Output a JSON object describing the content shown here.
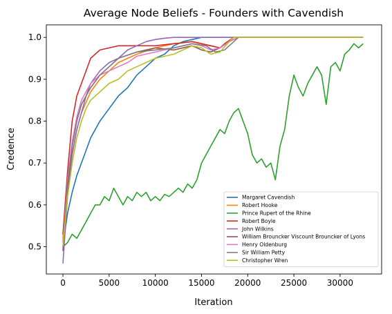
{
  "chart_data": {
    "type": "line",
    "title": "Average Node Beliefs - Founders with Cavendish",
    "xlabel": "Iteration",
    "ylabel": "Credence",
    "xlim": [
      -1800,
      34500
    ],
    "ylim": [
      0.435,
      1.03
    ],
    "xticks": [
      0,
      5000,
      10000,
      15000,
      20000,
      25000,
      30000
    ],
    "yticks": [
      0.5,
      0.6,
      0.7,
      0.8,
      0.9,
      1.0
    ],
    "xtick_labels": [
      "0",
      "5000",
      "10000",
      "15000",
      "20000",
      "25000",
      "30000"
    ],
    "ytick_labels": [
      "0.5",
      "0.6",
      "0.7",
      "0.8",
      "0.9",
      "1.0"
    ],
    "grid": false,
    "legend_position": "lower-right",
    "series": [
      {
        "name": "Margaret Cavendish",
        "color": "#1f77b4",
        "points": [
          [
            0,
            0.5
          ],
          [
            500,
            0.58
          ],
          [
            1000,
            0.63
          ],
          [
            1500,
            0.67
          ],
          [
            2000,
            0.7
          ],
          [
            2500,
            0.73
          ],
          [
            3000,
            0.76
          ],
          [
            3500,
            0.78
          ],
          [
            4000,
            0.8
          ],
          [
            5000,
            0.83
          ],
          [
            6000,
            0.86
          ],
          [
            7000,
            0.88
          ],
          [
            8000,
            0.91
          ],
          [
            9000,
            0.93
          ],
          [
            10000,
            0.95
          ],
          [
            11000,
            0.96
          ],
          [
            12000,
            0.98
          ],
          [
            13000,
            0.99
          ],
          [
            14000,
            0.995
          ],
          [
            15000,
            1.0
          ],
          [
            16000,
            1.0
          ],
          [
            18000,
            1.0
          ],
          [
            20000,
            1.0
          ],
          [
            32500,
            1.0
          ]
        ]
      },
      {
        "name": "Robert Hooke",
        "color": "#ff7f0e",
        "points": [
          [
            0,
            0.52
          ],
          [
            500,
            0.64
          ],
          [
            1000,
            0.72
          ],
          [
            1500,
            0.78
          ],
          [
            2000,
            0.82
          ],
          [
            3000,
            0.87
          ],
          [
            4000,
            0.9
          ],
          [
            5000,
            0.92
          ],
          [
            6000,
            0.94
          ],
          [
            8000,
            0.96
          ],
          [
            10000,
            0.975
          ],
          [
            12000,
            0.985
          ],
          [
            14000,
            0.99
          ],
          [
            16000,
            0.98
          ],
          [
            17000,
            0.975
          ],
          [
            18000,
            0.99
          ],
          [
            19000,
            1.0
          ],
          [
            32500,
            1.0
          ]
        ]
      },
      {
        "name": "Prince Rupert of the Rhine",
        "color": "#2ca02c",
        "points": [
          [
            0,
            0.5
          ],
          [
            500,
            0.51
          ],
          [
            1000,
            0.53
          ],
          [
            1500,
            0.52
          ],
          [
            2000,
            0.54
          ],
          [
            2500,
            0.56
          ],
          [
            3000,
            0.58
          ],
          [
            3500,
            0.6
          ],
          [
            4000,
            0.6
          ],
          [
            4500,
            0.62
          ],
          [
            5000,
            0.61
          ],
          [
            5500,
            0.64
          ],
          [
            6000,
            0.62
          ],
          [
            6500,
            0.6
          ],
          [
            7000,
            0.62
          ],
          [
            7500,
            0.61
          ],
          [
            8000,
            0.63
          ],
          [
            8500,
            0.62
          ],
          [
            9000,
            0.63
          ],
          [
            9500,
            0.61
          ],
          [
            10000,
            0.62
          ],
          [
            10500,
            0.61
          ],
          [
            11000,
            0.625
          ],
          [
            11500,
            0.62
          ],
          [
            12000,
            0.63
          ],
          [
            12500,
            0.64
          ],
          [
            13000,
            0.63
          ],
          [
            13500,
            0.65
          ],
          [
            14000,
            0.64
          ],
          [
            14500,
            0.66
          ],
          [
            15000,
            0.7
          ],
          [
            15500,
            0.72
          ],
          [
            16000,
            0.74
          ],
          [
            16500,
            0.76
          ],
          [
            17000,
            0.78
          ],
          [
            17500,
            0.77
          ],
          [
            18000,
            0.8
          ],
          [
            18500,
            0.82
          ],
          [
            19000,
            0.83
          ],
          [
            19500,
            0.8
          ],
          [
            20000,
            0.77
          ],
          [
            20500,
            0.72
          ],
          [
            21000,
            0.7
          ],
          [
            21500,
            0.71
          ],
          [
            22000,
            0.69
          ],
          [
            22500,
            0.7
          ],
          [
            23000,
            0.66
          ],
          [
            23500,
            0.74
          ],
          [
            24000,
            0.78
          ],
          [
            24500,
            0.86
          ],
          [
            25000,
            0.91
          ],
          [
            25500,
            0.88
          ],
          [
            26000,
            0.86
          ],
          [
            26500,
            0.89
          ],
          [
            27000,
            0.91
          ],
          [
            27500,
            0.93
          ],
          [
            28000,
            0.91
          ],
          [
            28500,
            0.84
          ],
          [
            29000,
            0.93
          ],
          [
            29500,
            0.94
          ],
          [
            30000,
            0.92
          ],
          [
            30500,
            0.96
          ],
          [
            31000,
            0.97
          ],
          [
            31500,
            0.985
          ],
          [
            32000,
            0.975
          ],
          [
            32500,
            0.985
          ]
        ]
      },
      {
        "name": "Robert Boyle",
        "color": "#d62728",
        "points": [
          [
            0,
            0.53
          ],
          [
            500,
            0.68
          ],
          [
            1000,
            0.8
          ],
          [
            1500,
            0.86
          ],
          [
            2000,
            0.89
          ],
          [
            2500,
            0.92
          ],
          [
            3000,
            0.95
          ],
          [
            4000,
            0.97
          ],
          [
            5000,
            0.975
          ],
          [
            6000,
            0.98
          ],
          [
            8000,
            0.98
          ],
          [
            10000,
            0.98
          ],
          [
            12000,
            0.985
          ],
          [
            14000,
            0.99
          ],
          [
            16000,
            0.98
          ],
          [
            17000,
            0.975
          ],
          [
            17500,
            0.985
          ],
          [
            18500,
            1.0
          ],
          [
            32500,
            1.0
          ]
        ]
      },
      {
        "name": "John Wilkins",
        "color": "#9467bd",
        "points": [
          [
            0,
            0.46
          ],
          [
            500,
            0.62
          ],
          [
            1000,
            0.72
          ],
          [
            1500,
            0.78
          ],
          [
            2000,
            0.82
          ],
          [
            2500,
            0.86
          ],
          [
            3000,
            0.89
          ],
          [
            4000,
            0.92
          ],
          [
            5000,
            0.94
          ],
          [
            6000,
            0.95
          ],
          [
            7000,
            0.97
          ],
          [
            8000,
            0.98
          ],
          [
            9000,
            0.99
          ],
          [
            10000,
            0.995
          ],
          [
            11000,
            0.998
          ],
          [
            12000,
            1.0
          ],
          [
            32500,
            1.0
          ]
        ]
      },
      {
        "name": "William Brouncker Viscount Brouncker of Lyons",
        "color": "#8c564b",
        "points": [
          [
            0,
            0.49
          ],
          [
            500,
            0.64
          ],
          [
            1000,
            0.74
          ],
          [
            1500,
            0.8
          ],
          [
            2000,
            0.84
          ],
          [
            3000,
            0.88
          ],
          [
            4000,
            0.91
          ],
          [
            5000,
            0.93
          ],
          [
            6000,
            0.95
          ],
          [
            8000,
            0.965
          ],
          [
            10000,
            0.975
          ],
          [
            12000,
            0.97
          ],
          [
            14000,
            0.98
          ],
          [
            15000,
            0.97
          ],
          [
            16000,
            0.965
          ],
          [
            17000,
            0.975
          ],
          [
            18000,
            0.99
          ],
          [
            19000,
            1.0
          ],
          [
            32500,
            1.0
          ]
        ]
      },
      {
        "name": "Henry Oldenburg",
        "color": "#e377c2",
        "points": [
          [
            0,
            0.51
          ],
          [
            500,
            0.66
          ],
          [
            1000,
            0.75
          ],
          [
            1500,
            0.81
          ],
          [
            2000,
            0.85
          ],
          [
            3000,
            0.89
          ],
          [
            4000,
            0.91
          ],
          [
            5000,
            0.92
          ],
          [
            6000,
            0.93
          ],
          [
            7000,
            0.94
          ],
          [
            8000,
            0.955
          ],
          [
            10000,
            0.965
          ],
          [
            12000,
            0.975
          ],
          [
            14000,
            0.985
          ],
          [
            15000,
            0.98
          ],
          [
            16000,
            0.97
          ],
          [
            17000,
            0.975
          ],
          [
            18000,
            0.99
          ],
          [
            19000,
            1.0
          ],
          [
            32500,
            1.0
          ]
        ]
      },
      {
        "name": "Sir William Petty",
        "color": "#7f7f7f",
        "points": [
          [
            0,
            0.5
          ],
          [
            500,
            0.65
          ],
          [
            1000,
            0.74
          ],
          [
            1500,
            0.8
          ],
          [
            2000,
            0.84
          ],
          [
            3000,
            0.88
          ],
          [
            4000,
            0.91
          ],
          [
            5000,
            0.93
          ],
          [
            6000,
            0.95
          ],
          [
            8000,
            0.965
          ],
          [
            10000,
            0.97
          ],
          [
            12000,
            0.975
          ],
          [
            14000,
            0.985
          ],
          [
            15500,
            0.98
          ],
          [
            16500,
            0.965
          ],
          [
            17500,
            0.97
          ],
          [
            18500,
            0.99
          ],
          [
            19000,
            1.0
          ],
          [
            32500,
            1.0
          ]
        ]
      },
      {
        "name": "Christopher Wren",
        "color": "#bcbd22",
        "points": [
          [
            0,
            0.5
          ],
          [
            500,
            0.62
          ],
          [
            1000,
            0.7
          ],
          [
            1500,
            0.76
          ],
          [
            2000,
            0.8
          ],
          [
            2500,
            0.83
          ],
          [
            3000,
            0.85
          ],
          [
            4000,
            0.87
          ],
          [
            5000,
            0.89
          ],
          [
            6000,
            0.9
          ],
          [
            7000,
            0.92
          ],
          [
            8000,
            0.93
          ],
          [
            9000,
            0.94
          ],
          [
            10000,
            0.95
          ],
          [
            11000,
            0.955
          ],
          [
            12000,
            0.96
          ],
          [
            13000,
            0.97
          ],
          [
            14000,
            0.98
          ],
          [
            15000,
            0.975
          ],
          [
            16000,
            0.96
          ],
          [
            17000,
            0.965
          ],
          [
            18000,
            0.99
          ],
          [
            18500,
            1.0
          ],
          [
            32500,
            1.0
          ]
        ]
      }
    ]
  }
}
